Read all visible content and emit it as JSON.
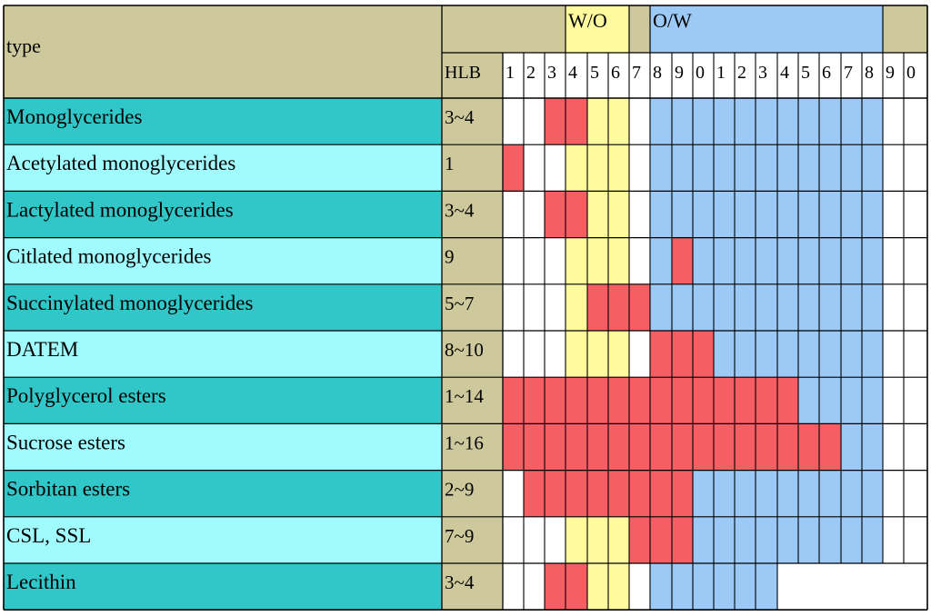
{
  "colors": {
    "header_bg": "#cdc99c",
    "row_dark": "#31c6c8",
    "row_light": "#a0fbfe",
    "hlb_bg": "#cdc99c",
    "wo_band": "#fffa9e",
    "ow_band": "#9dc9f6",
    "highlight": "#f55f63",
    "white": "#ffffff",
    "grid": "#000000"
  },
  "header": {
    "type_label": "type",
    "hlb_label": "HLB",
    "wo_label": "W/O",
    "ow_label": "O/W",
    "column_digits": [
      "1",
      "2",
      "3",
      "4",
      "5",
      "6",
      "7",
      "8",
      "9",
      "0",
      "1",
      "2",
      "3",
      "4",
      "5",
      "6",
      "7",
      "8",
      "9",
      "0"
    ]
  },
  "chart_data": {
    "type": "table",
    "hlb_scale": [
      1,
      2,
      3,
      4,
      5,
      6,
      7,
      8,
      9,
      10,
      11,
      12,
      13,
      14,
      15,
      16,
      17,
      18,
      19,
      20
    ],
    "wo_range": [
      4,
      6
    ],
    "ow_range": [
      8,
      18
    ],
    "rows": [
      {
        "name": "Monoglycerides",
        "hlb": "3~4",
        "highlight": [
          3,
          4
        ],
        "style": "dark"
      },
      {
        "name": "Acetylated monoglycerides",
        "hlb": "1",
        "highlight": [
          1,
          1
        ],
        "style": "light"
      },
      {
        "name": "Lactylated monoglycerides",
        "hlb": "3~4",
        "highlight": [
          3,
          4
        ],
        "style": "dark"
      },
      {
        "name": "Citlated monoglycerides",
        "hlb": "9",
        "highlight": [
          9,
          9
        ],
        "style": "light"
      },
      {
        "name": "Succinylated monoglycerides",
        "hlb": "5~7",
        "highlight": [
          5,
          7
        ],
        "style": "dark"
      },
      {
        "name": "DATEM",
        "hlb": "8~10",
        "highlight": [
          8,
          10
        ],
        "style": "light"
      },
      {
        "name": "Polyglycerol esters",
        "hlb": "1~14",
        "highlight": [
          1,
          14
        ],
        "style": "dark"
      },
      {
        "name": "Sucrose esters",
        "hlb": "1~16",
        "highlight": [
          1,
          16
        ],
        "style": "light"
      },
      {
        "name": "Sorbitan esters",
        "hlb": "2~9",
        "highlight": [
          2,
          9
        ],
        "style": "dark"
      },
      {
        "name": "CSL, SSL",
        "hlb": "7~9",
        "highlight": [
          7,
          9
        ],
        "style": "light"
      },
      {
        "name": "Lecithin",
        "hlb": "3~4",
        "highlight": [
          3,
          4
        ],
        "style": "dark",
        "ow_band_end": 13,
        "blank_after": 13
      }
    ]
  }
}
